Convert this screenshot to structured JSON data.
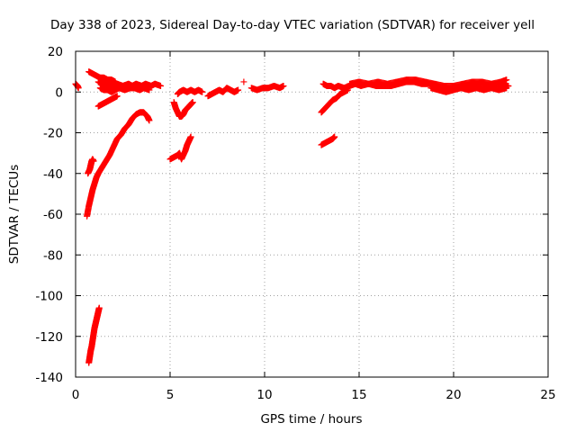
{
  "chart_data": {
    "type": "scatter",
    "title": "Day 338 of 2023, Sidereal Day-to-day VTEC variation (SDTVAR) for receiver yell",
    "xlabel": "GPS time / hours",
    "ylabel": "SDTVAR / TECUs",
    "xlim": [
      0,
      25
    ],
    "ylim": [
      -140,
      20
    ],
    "xticks": [
      0,
      5,
      10,
      15,
      20,
      25
    ],
    "yticks": [
      -140,
      -120,
      -100,
      -80,
      -60,
      -40,
      -20,
      0,
      20
    ],
    "grid": true,
    "marker": "+",
    "color": "#ff0000",
    "segments": [
      [
        [
          0.0,
          4
        ],
        [
          0.1,
          3
        ],
        [
          0.15,
          2
        ]
      ],
      [
        [
          0.7,
          10
        ],
        [
          0.9,
          9
        ],
        [
          1.1,
          8
        ],
        [
          1.3,
          7
        ],
        [
          1.5,
          7
        ],
        [
          1.7,
          6
        ],
        [
          1.9,
          6
        ],
        [
          2.1,
          5
        ]
      ],
      [
        [
          1.2,
          5
        ],
        [
          1.4,
          4
        ],
        [
          1.6,
          4
        ],
        [
          1.8,
          3
        ],
        [
          2.0,
          3
        ],
        [
          2.2,
          4
        ],
        [
          2.5,
          3
        ],
        [
          2.8,
          4
        ],
        [
          3.0,
          3
        ],
        [
          3.2,
          4
        ],
        [
          3.5,
          3
        ],
        [
          3.7,
          4
        ],
        [
          4.0,
          3
        ],
        [
          4.2,
          4
        ],
        [
          4.5,
          3
        ]
      ],
      [
        [
          1.3,
          2
        ],
        [
          1.5,
          1
        ],
        [
          1.7,
          1
        ],
        [
          1.9,
          0
        ],
        [
          2.1,
          1
        ],
        [
          2.3,
          2
        ],
        [
          2.6,
          1
        ],
        [
          2.9,
          2
        ],
        [
          3.1,
          2
        ],
        [
          3.4,
          1
        ],
        [
          3.6,
          2
        ],
        [
          3.9,
          1
        ]
      ],
      [
        [
          1.2,
          -7
        ],
        [
          1.4,
          -6
        ],
        [
          1.6,
          -5
        ],
        [
          1.8,
          -4
        ],
        [
          2.0,
          -3
        ],
        [
          2.2,
          -2
        ]
      ],
      [
        [
          0.6,
          -61
        ],
        [
          0.7,
          -56
        ],
        [
          0.8,
          -52
        ],
        [
          0.9,
          -48
        ],
        [
          1.0,
          -45
        ],
        [
          1.1,
          -42
        ],
        [
          1.2,
          -40
        ],
        [
          1.4,
          -37
        ],
        [
          1.6,
          -34
        ],
        [
          1.8,
          -31
        ],
        [
          2.0,
          -27
        ],
        [
          2.2,
          -23
        ],
        [
          2.4,
          -21
        ],
        [
          2.6,
          -18
        ],
        [
          2.8,
          -16
        ],
        [
          3.0,
          -13
        ],
        [
          3.2,
          -11
        ],
        [
          3.4,
          -10
        ],
        [
          3.6,
          -10
        ],
        [
          3.8,
          -12
        ],
        [
          3.9,
          -14
        ]
      ],
      [
        [
          0.65,
          -40
        ],
        [
          0.75,
          -38
        ],
        [
          0.8,
          -36
        ],
        [
          0.85,
          -34
        ],
        [
          0.9,
          -33
        ],
        [
          0.95,
          -34
        ]
      ],
      [
        [
          0.7,
          -133
        ],
        [
          0.75,
          -130
        ],
        [
          0.8,
          -127
        ],
        [
          0.85,
          -125
        ],
        [
          0.9,
          -122
        ],
        [
          0.95,
          -119
        ],
        [
          1.0,
          -116
        ],
        [
          1.05,
          -114
        ],
        [
          1.1,
          -112
        ],
        [
          1.15,
          -110
        ],
        [
          1.2,
          -108
        ],
        [
          1.25,
          -106
        ]
      ],
      [
        [
          5.0,
          -33
        ],
        [
          5.2,
          -32
        ],
        [
          5.4,
          -31
        ],
        [
          5.5,
          -30
        ],
        [
          5.6,
          -33
        ],
        [
          5.8,
          -29
        ],
        [
          5.9,
          -26
        ],
        [
          6.0,
          -24
        ],
        [
          6.1,
          -22
        ]
      ],
      [
        [
          5.2,
          -5
        ],
        [
          5.3,
          -8
        ],
        [
          5.4,
          -10
        ],
        [
          5.5,
          -12
        ],
        [
          5.6,
          -12
        ],
        [
          5.7,
          -11
        ],
        [
          5.8,
          -9
        ],
        [
          5.9,
          -8
        ],
        [
          6.0,
          -7
        ],
        [
          6.1,
          -6
        ],
        [
          6.2,
          -5
        ]
      ],
      [
        [
          5.4,
          -1
        ],
        [
          5.5,
          0
        ],
        [
          5.7,
          1
        ],
        [
          5.9,
          0
        ],
        [
          6.1,
          1
        ],
        [
          6.3,
          0
        ],
        [
          6.5,
          1
        ],
        [
          6.7,
          0
        ]
      ],
      [
        [
          7.0,
          -2
        ],
        [
          7.2,
          -1
        ],
        [
          7.4,
          0
        ],
        [
          7.6,
          1
        ],
        [
          7.8,
          0
        ],
        [
          8.0,
          2
        ],
        [
          8.2,
          1
        ],
        [
          8.4,
          0
        ],
        [
          8.6,
          1
        ]
      ],
      [
        [
          8.9,
          5
        ]
      ],
      [
        [
          9.3,
          2
        ],
        [
          9.6,
          1
        ],
        [
          9.9,
          2
        ],
        [
          10.2,
          2
        ],
        [
          10.5,
          3
        ],
        [
          10.8,
          2
        ],
        [
          11.0,
          3
        ]
      ],
      [
        [
          13.0,
          -26
        ],
        [
          13.2,
          -25
        ],
        [
          13.4,
          -24
        ],
        [
          13.6,
          -23
        ],
        [
          13.7,
          -22
        ]
      ],
      [
        [
          13.0,
          -10
        ],
        [
          13.2,
          -8
        ],
        [
          13.4,
          -6
        ],
        [
          13.6,
          -4
        ],
        [
          13.8,
          -3
        ],
        [
          14.0,
          -1
        ],
        [
          14.2,
          0
        ],
        [
          14.4,
          1
        ]
      ],
      [
        [
          13.1,
          4
        ],
        [
          13.3,
          3
        ],
        [
          13.5,
          3
        ],
        [
          13.7,
          2
        ],
        [
          13.9,
          3
        ],
        [
          14.2,
          2
        ],
        [
          14.5,
          3
        ],
        [
          14.8,
          4
        ],
        [
          15.1,
          3
        ],
        [
          15.5,
          4
        ],
        [
          15.9,
          3
        ],
        [
          16.3,
          3
        ],
        [
          16.7,
          3
        ],
        [
          17.1,
          4
        ],
        [
          17.5,
          5
        ],
        [
          17.9,
          5
        ],
        [
          18.3,
          4
        ],
        [
          18.7,
          4
        ],
        [
          19.1,
          3
        ],
        [
          19.5,
          2
        ],
        [
          19.9,
          1
        ],
        [
          20.3,
          2
        ],
        [
          20.7,
          3
        ],
        [
          21.1,
          4
        ],
        [
          21.5,
          4
        ],
        [
          21.9,
          3
        ],
        [
          22.3,
          4
        ],
        [
          22.7,
          3
        ],
        [
          22.9,
          3
        ]
      ],
      [
        [
          14.5,
          4
        ],
        [
          15.0,
          5
        ],
        [
          15.5,
          4
        ],
        [
          16.0,
          5
        ],
        [
          16.5,
          4
        ],
        [
          17.0,
          5
        ],
        [
          17.5,
          6
        ],
        [
          18.0,
          6
        ],
        [
          18.5,
          5
        ],
        [
          19.0,
          4
        ],
        [
          19.5,
          3
        ],
        [
          20.0,
          3
        ],
        [
          20.5,
          4
        ],
        [
          21.0,
          5
        ],
        [
          21.5,
          5
        ],
        [
          22.0,
          4
        ],
        [
          22.5,
          5
        ],
        [
          22.8,
          6
        ]
      ],
      [
        [
          18.8,
          2
        ],
        [
          19.2,
          1
        ],
        [
          19.6,
          0
        ],
        [
          20.0,
          1
        ],
        [
          20.4,
          2
        ],
        [
          20.8,
          1
        ],
        [
          21.2,
          2
        ],
        [
          21.6,
          1
        ],
        [
          22.0,
          2
        ],
        [
          22.4,
          1
        ],
        [
          22.8,
          2
        ]
      ]
    ]
  }
}
